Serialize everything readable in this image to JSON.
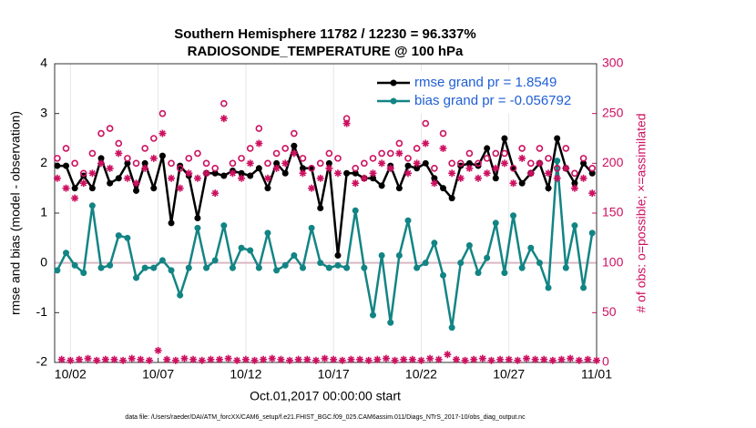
{
  "chart_data": {
    "type": "line",
    "title": "Southern Hemisphere 11782 / 12230 = 96.337%",
    "subtitle": "RADIOSONDE_TEMPERATURE @ 100 hPa",
    "ylabel": "rmse and bias (model - observation)",
    "y2label": "# of obs: o=possible; ×=assimilated",
    "xlabel": "Oct.01,2017 00:00:00 start",
    "footnote": "data file: /Users/raeder/DAI/ATM_forcXX/CAM6_setup/f.e21.FHIST_BGC.f09_025.CAM6assim.011/Diags_NTrS_2017-10/obs_diag_output.nc",
    "xlim": [
      0.1,
      31
    ],
    "xticks": [
      {
        "value": 1,
        "label": "10/02"
      },
      {
        "value": 6,
        "label": "10/07"
      },
      {
        "value": 11,
        "label": "10/12"
      },
      {
        "value": 16,
        "label": "10/17"
      },
      {
        "value": 21,
        "label": "10/22"
      },
      {
        "value": 26,
        "label": "10/27"
      },
      {
        "value": 31,
        "label": "11/01"
      }
    ],
    "ylim": [
      -2,
      4
    ],
    "yticks": [
      -2,
      -1,
      0,
      1,
      2,
      3,
      4
    ],
    "y2lim": [
      0,
      300
    ],
    "y2ticks": [
      0,
      50,
      100,
      150,
      200,
      250,
      300
    ],
    "grid": true,
    "legend": "top-right",
    "zero_line_color": "#d9b8c4",
    "x": [
      0.25,
      0.75,
      1.25,
      1.75,
      2.25,
      2.75,
      3.25,
      3.75,
      4.25,
      4.75,
      5.25,
      5.75,
      6.25,
      6.75,
      7.25,
      7.75,
      8.25,
      8.75,
      9.25,
      9.75,
      10.25,
      10.75,
      11.25,
      11.75,
      12.25,
      12.75,
      13.25,
      13.75,
      14.25,
      14.75,
      15.25,
      15.75,
      16.25,
      16.75,
      17.25,
      17.75,
      18.25,
      18.75,
      19.25,
      19.75,
      20.25,
      20.75,
      21.25,
      21.75,
      22.25,
      22.75,
      23.25,
      23.75,
      24.25,
      24.75,
      25.25,
      25.75,
      26.25,
      26.75,
      27.25,
      27.75,
      28.25,
      28.75,
      29.25,
      29.75,
      30.25,
      30.75
    ],
    "series": [
      {
        "name": "rmse grand pr = 1.8549",
        "color": "#000000",
        "marker": "dot",
        "line": true,
        "values": [
          1.95,
          1.95,
          1.5,
          1.75,
          1.5,
          2.1,
          1.6,
          1.7,
          2.0,
          1.45,
          2.0,
          1.5,
          2.15,
          0.8,
          1.95,
          1.75,
          0.9,
          1.8,
          1.8,
          1.75,
          1.85,
          1.8,
          1.75,
          1.9,
          1.5,
          2.0,
          1.8,
          2.35,
          1.9,
          1.9,
          1.1,
          2.0,
          0.15,
          1.8,
          1.8,
          1.7,
          1.7,
          1.55,
          1.95,
          1.5,
          1.95,
          1.9,
          2.0,
          1.7,
          1.5,
          1.3,
          1.95,
          2.0,
          1.95,
          2.3,
          1.7,
          2.5,
          1.9,
          1.6,
          1.8,
          2.0,
          1.5,
          2.5,
          1.9,
          1.6,
          2.0,
          1.8
        ]
      },
      {
        "name": "bias grand pr = -0.056792",
        "color": "#138484",
        "marker": "dot",
        "line": true,
        "values": [
          -0.15,
          0.2,
          -0.05,
          -0.2,
          1.15,
          -0.1,
          -0.05,
          0.55,
          0.5,
          -0.3,
          -0.1,
          -0.1,
          0.05,
          -0.15,
          -0.65,
          -0.1,
          0.7,
          -0.1,
          0.05,
          0.75,
          -0.1,
          0.3,
          0.25,
          -0.1,
          0.6,
          -0.15,
          -0.05,
          0.15,
          -0.1,
          0.7,
          0.0,
          -0.1,
          -0.05,
          -0.1,
          1.05,
          -0.1,
          -1.05,
          0.15,
          -1.2,
          0.15,
          0.85,
          -0.1,
          0.0,
          0.4,
          -0.25,
          -1.3,
          0.0,
          0.35,
          -0.2,
          0.1,
          0.8,
          -0.2,
          0.95,
          -0.1,
          0.3,
          0.0,
          -0.5,
          2.05,
          -0.1,
          0.75,
          -0.5,
          0.6
        ]
      },
      {
        "color": "#cc1060",
        "marker": "circle",
        "axis": "y2",
        "values": [
          205,
          215,
          200,
          190,
          210,
          230,
          235,
          220,
          205,
          200,
          215,
          225,
          250,
          200,
          195,
          205,
          210,
          200,
          195,
          260,
          200,
          205,
          215,
          235,
          200,
          210,
          215,
          230,
          205,
          195,
          200,
          210,
          205,
          245,
          195,
          200,
          205,
          210,
          210,
          220,
          205,
          215,
          240,
          195,
          230,
          200,
          200,
          210,
          200,
          205,
          210,
          210,
          195,
          215,
          200,
          215,
          205,
          195,
          215,
          190,
          205,
          195
        ]
      },
      {
        "color": "#cc1060",
        "marker": "star",
        "axis": "y2",
        "values": [
          185,
          175,
          165,
          180,
          190,
          200,
          195,
          210,
          185,
          180,
          195,
          205,
          230,
          185,
          175,
          190,
          185,
          190,
          170,
          245,
          190,
          185,
          200,
          220,
          185,
          195,
          200,
          210,
          190,
          175,
          185,
          195,
          190,
          240,
          180,
          185,
          190,
          200,
          195,
          210,
          190,
          200,
          220,
          180,
          215,
          190,
          185,
          195,
          185,
          190,
          195,
          200,
          180,
          205,
          190,
          200,
          190,
          185,
          195,
          175,
          185,
          170
        ]
      },
      {
        "color": "#cc1060",
        "marker": "star",
        "axis": "y2",
        "x": [
          0.5,
          1.0,
          1.5,
          2.0,
          2.5,
          3.0,
          3.5,
          4.0,
          4.5,
          5.0,
          5.5,
          6.0,
          6.5,
          7.0,
          7.5,
          8.0,
          8.5,
          9.0,
          9.5,
          10.0,
          10.5,
          11.0,
          11.5,
          12.0,
          12.5,
          13.0,
          13.5,
          14.0,
          14.5,
          15.0,
          15.5,
          16.0,
          16.5,
          17.0,
          17.5,
          18.0,
          18.5,
          19.0,
          19.5,
          20.0,
          20.5,
          21.0,
          21.5,
          22.0,
          22.5,
          23.0,
          23.5,
          24.0,
          24.5,
          25.0,
          25.5,
          26.0,
          26.5,
          27.0,
          27.5,
          28.0,
          28.5,
          29.0,
          29.5,
          30.0,
          30.5,
          31.0
        ],
        "values": [
          3,
          2,
          3,
          4,
          2,
          3,
          3,
          2,
          4,
          3,
          2,
          12,
          3,
          2,
          4,
          3,
          2,
          3,
          3,
          4,
          2,
          3,
          2,
          3,
          4,
          3,
          2,
          3,
          3,
          2,
          4,
          3,
          2,
          3,
          3,
          2,
          3,
          4,
          2,
          3,
          3,
          2,
          4,
          3,
          8,
          3,
          2,
          3,
          4,
          2,
          3,
          3,
          2,
          4,
          3,
          3,
          2,
          3,
          4,
          2,
          3,
          2
        ]
      }
    ]
  }
}
